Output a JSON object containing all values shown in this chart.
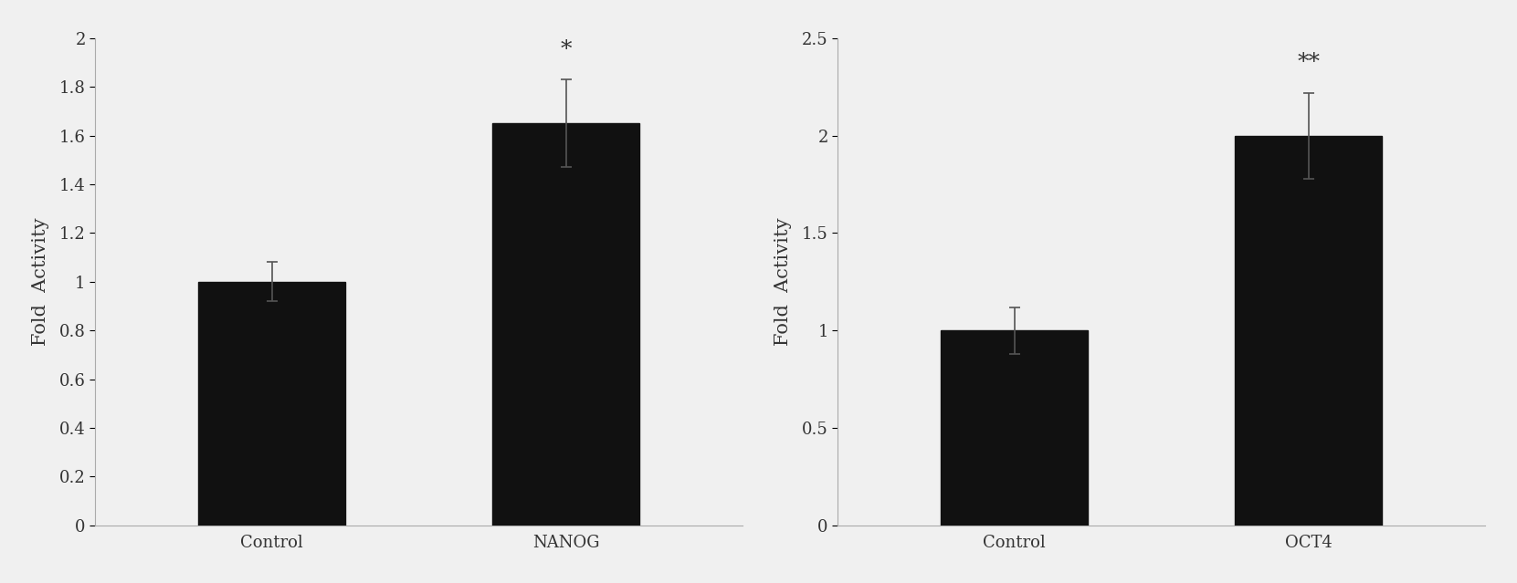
{
  "left_chart": {
    "categories": [
      "Control",
      "NANOG"
    ],
    "values": [
      1.0,
      1.65
    ],
    "errors": [
      0.08,
      0.18
    ],
    "ylabel": "Fold  Activity",
    "ylim": [
      0,
      2.0
    ],
    "yticks": [
      0,
      0.2,
      0.4,
      0.6,
      0.8,
      1.0,
      1.2,
      1.4,
      1.6,
      1.8,
      2.0
    ],
    "significance": [
      "",
      "*"
    ],
    "bar_color": "#111111",
    "bar_width": 0.5
  },
  "right_chart": {
    "categories": [
      "Control",
      "OCT4"
    ],
    "values": [
      1.0,
      2.0
    ],
    "errors": [
      0.12,
      0.22
    ],
    "ylabel": "Fold  Activity",
    "ylim": [
      0,
      2.5
    ],
    "yticks": [
      0,
      0.5,
      1.0,
      1.5,
      2.0,
      2.5
    ],
    "significance": [
      "",
      "**"
    ],
    "bar_color": "#111111",
    "bar_width": 0.5
  },
  "bg_color": "#f0f0f0",
  "axes_color": "#aaaaaa",
  "text_color": "#333333",
  "error_color": "#555555",
  "font_size": 13,
  "label_font_size": 15,
  "sig_font_size": 18
}
